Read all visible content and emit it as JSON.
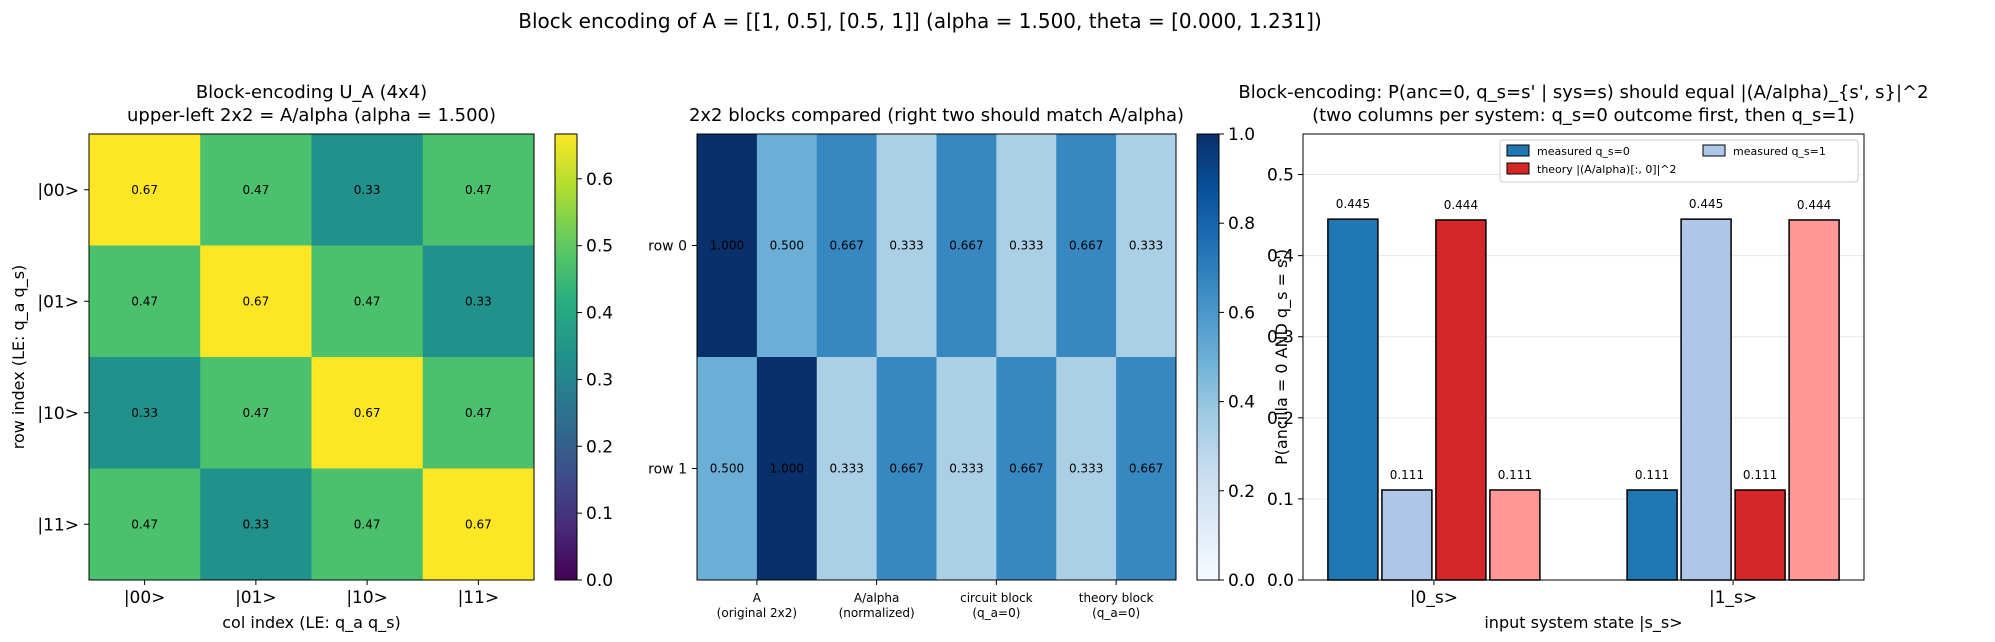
{
  "suptitle": "Block encoding of A = [[1, 0.5], [0.5, 1]]  (alpha = 1.500, theta = [0.000, 1.231])",
  "chart_data": [
    {
      "type": "heatmap",
      "title_lines": [
        "Block-encoding U_A (4x4)",
        "upper-left 2x2 = A/alpha  (alpha = 1.500)"
      ],
      "xlabel": "col index (LE: q_a q_s)",
      "ylabel": "row index (LE: q_a q_s)",
      "row_labels": [
        "|00>",
        "|01>",
        "|10>",
        "|11>"
      ],
      "col_labels": [
        "|00>",
        "|01>",
        "|10>",
        "|11>"
      ],
      "values": [
        [
          0.667,
          0.471,
          0.333,
          0.471
        ],
        [
          0.471,
          0.667,
          0.471,
          0.333
        ],
        [
          0.333,
          0.471,
          0.667,
          0.471
        ],
        [
          0.471,
          0.333,
          0.471,
          0.667
        ]
      ],
      "cell_labels": [
        [
          "0.67",
          "0.47",
          "0.33",
          "0.47"
        ],
        [
          "0.47",
          "0.67",
          "0.47",
          "0.33"
        ],
        [
          "0.33",
          "0.47",
          "0.67",
          "0.47"
        ],
        [
          "0.47",
          "0.33",
          "0.47",
          "0.67"
        ]
      ],
      "colormap": "viridis",
      "vrange": [
        0,
        0.667
      ],
      "colorbar_ticks": [
        "0.0",
        "0.1",
        "0.2",
        "0.3",
        "0.4",
        "0.5",
        "0.6"
      ],
      "colorbar_tick_values": [
        0,
        0.1,
        0.2,
        0.3,
        0.4,
        0.5,
        0.6
      ]
    },
    {
      "type": "heatmap",
      "title_lines": [
        "2x2 blocks compared (right two should match A/alpha)"
      ],
      "row_labels": [
        "row 0",
        "row 1"
      ],
      "col_groups": [
        [
          "A",
          "(original 2x2)"
        ],
        [
          "A/alpha",
          "(normalized)"
        ],
        [
          "circuit block",
          "(q_a=0)"
        ],
        [
          "theory block",
          "(q_a=0)"
        ]
      ],
      "values": [
        [
          1.0,
          0.5,
          0.667,
          0.333,
          0.667,
          0.333,
          0.667,
          0.333
        ],
        [
          0.5,
          1.0,
          0.333,
          0.667,
          0.333,
          0.667,
          0.333,
          0.667
        ]
      ],
      "cell_labels": [
        [
          "1.000",
          "0.500",
          "0.667",
          "0.333",
          "0.667",
          "0.333",
          "0.667",
          "0.333"
        ],
        [
          "0.500",
          "1.000",
          "0.333",
          "0.667",
          "0.333",
          "0.667",
          "0.333",
          "0.667"
        ]
      ],
      "colormap": "Blues",
      "vrange": [
        0,
        1
      ],
      "colorbar_ticks": [
        "0.0",
        "0.2",
        "0.4",
        "0.6",
        "0.8",
        "1.0"
      ],
      "colorbar_tick_values": [
        0,
        0.2,
        0.4,
        0.6,
        0.8,
        1.0
      ]
    },
    {
      "type": "bar",
      "title_lines": [
        "Block-encoding: P(anc=0, q_s=s' | sys=s) should equal |(A/alpha)_{s', s}|^2",
        "(two columns per system: q_s=0 outcome first, then q_s=1)"
      ],
      "xlabel": "input system state |s_s>",
      "ylabel": "P(ancilla = 0 AND q_s = s')",
      "categories": [
        "|0_s>",
        "|1_s>"
      ],
      "ylim": [
        0,
        0.55
      ],
      "yticks": [
        "0.0",
        "0.1",
        "0.2",
        "0.3",
        "0.4",
        "0.5"
      ],
      "ytick_values": [
        0,
        0.1,
        0.2,
        0.3,
        0.4,
        0.5
      ],
      "grid": "y",
      "legend_position": "top-right",
      "series": [
        {
          "name": "measured q_s=0",
          "color": "#1f77b4",
          "values": [
            0.445,
            0.111
          ],
          "labels": [
            "0.445",
            "0.111"
          ]
        },
        {
          "name": "measured q_s=1",
          "color": "#aec7e8",
          "values": [
            0.111,
            0.445
          ],
          "labels": [
            "0.111",
            "0.445"
          ]
        },
        {
          "name": "theory |(A/alpha)[:, 0]|^2",
          "color": "#d62728",
          "values": [
            0.444,
            0.111
          ],
          "labels": [
            "0.444",
            "0.111"
          ]
        },
        {
          "name": "",
          "color": "#ff9896",
          "values": [
            0.111,
            0.444
          ],
          "labels": [
            "0.111",
            "0.444"
          ]
        }
      ]
    }
  ]
}
